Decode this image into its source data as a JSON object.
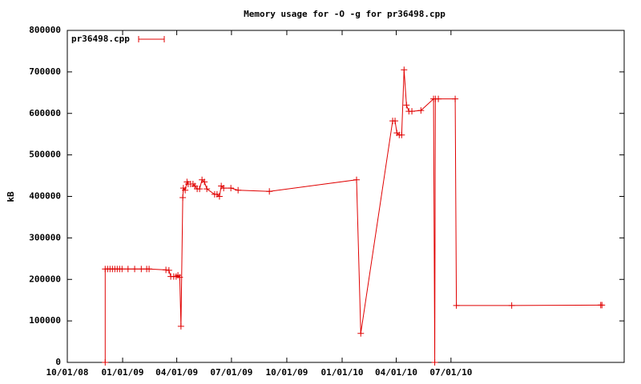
{
  "chart_data": {
    "type": "line",
    "title": "Memory usage for -O -g for pr36498.cpp",
    "y_label": "kB",
    "x": [
      "2008-12-03",
      "2008-12-03",
      "2008-12-07",
      "2008-12-11",
      "2008-12-15",
      "2008-12-19",
      "2008-12-23",
      "2008-12-27",
      "2008-12-31",
      "2009-01-10",
      "2009-01-21",
      "2009-02-01",
      "2009-02-10",
      "2009-02-14",
      "2009-03-14",
      "2009-03-19",
      "2009-03-22",
      "2009-03-27",
      "2009-03-31",
      "2009-04-03",
      "2009-04-06",
      "2009-04-08",
      "2009-04-11",
      "2009-04-12",
      "2009-04-15",
      "2009-04-18",
      "2009-04-20",
      "2009-04-24",
      "2009-04-28",
      "2009-05-01",
      "2009-05-05",
      "2009-05-09",
      "2009-05-13",
      "2009-05-17",
      "2009-05-21",
      "2009-06-03",
      "2009-06-07",
      "2009-06-11",
      "2009-06-14",
      "2009-06-18",
      "2009-06-30",
      "2009-07-12",
      "2009-09-02",
      "2010-01-25",
      "2010-02-01",
      "2010-03-26",
      "2010-03-30",
      "2010-04-02",
      "2010-04-06",
      "2010-04-10",
      "2010-04-14",
      "2010-04-18",
      "2010-04-22",
      "2010-04-27",
      "2010-05-12",
      "2010-06-02",
      "2010-06-04",
      "2010-06-05",
      "2010-06-10",
      "2010-07-08",
      "2010-07-10",
      "2010-10-10",
      "2011-03-07",
      "2011-03-09"
    ],
    "series": [
      {
        "name": "pr36498.cpp",
        "color": "#e00000",
        "values": [
          0,
          225000,
          225000,
          225000,
          225000,
          225000,
          225000,
          225000,
          225000,
          225000,
          225000,
          225000,
          225000,
          225000,
          223000,
          222000,
          207000,
          207000,
          207000,
          210000,
          205000,
          87000,
          397000,
          420000,
          415000,
          435000,
          430000,
          430000,
          430000,
          425000,
          418000,
          418000,
          440000,
          435000,
          418000,
          405000,
          405000,
          400000,
          425000,
          420000,
          420000,
          415000,
          412000,
          440000,
          70000,
          582000,
          582000,
          553000,
          548000,
          548000,
          705000,
          620000,
          605000,
          605000,
          607000,
          635000,
          0,
          635000,
          635000,
          635000,
          137000,
          137000,
          138000,
          138000
        ]
      }
    ],
    "xlim": [
      "2008-10-01",
      "2011-04-15"
    ],
    "xticks": [
      {
        "value": "2008-10-01",
        "label": "10/01/08"
      },
      {
        "value": "2009-01-01",
        "label": "01/01/09"
      },
      {
        "value": "2009-04-01",
        "label": "04/01/09"
      },
      {
        "value": "2009-07-01",
        "label": "07/01/09"
      },
      {
        "value": "2009-10-01",
        "label": "10/01/09"
      },
      {
        "value": "2010-01-01",
        "label": "01/01/10"
      },
      {
        "value": "2010-04-01",
        "label": "04/01/10"
      },
      {
        "value": "2010-07-01",
        "label": "07/01/10"
      }
    ],
    "ylim": [
      0,
      800000
    ],
    "yticks": [
      0,
      100000,
      200000,
      300000,
      400000,
      500000,
      600000,
      700000,
      800000
    ],
    "grid": false,
    "legend": "top-left"
  }
}
